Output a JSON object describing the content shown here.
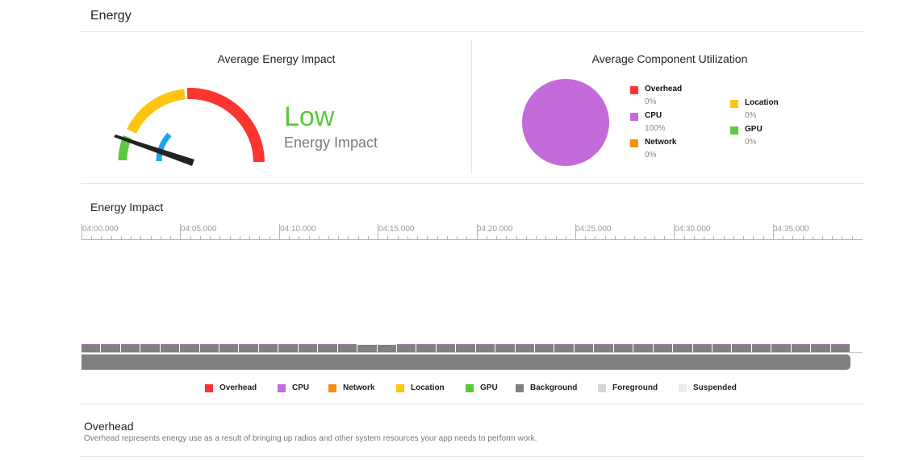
{
  "header": {
    "title": "Energy"
  },
  "gauge_panel": {
    "title": "Average Energy Impact",
    "level": "Low",
    "level_color": "#5ac93e",
    "subtitle": "Energy Impact",
    "segments": [
      {
        "name": "low",
        "color": "#5ac93e"
      },
      {
        "name": "medium",
        "color": "#fdc50d"
      },
      {
        "name": "high",
        "color": "#fd3530"
      },
      {
        "name": "current",
        "color": "#1ea3f4"
      }
    ]
  },
  "utilization_panel": {
    "title": "Average Component Utilization",
    "pie_color": "#c46bdb",
    "legend": [
      {
        "name": "Overhead",
        "value": "0%",
        "color": "#fd3530"
      },
      {
        "name": "CPU",
        "value": "100%",
        "color": "#c46bdb"
      },
      {
        "name": "Network",
        "value": "0%",
        "color": "#f68d0e"
      },
      {
        "name": "Location",
        "value": "0%",
        "color": "#fdc50d"
      },
      {
        "name": "GPU",
        "value": "0%",
        "color": "#5ac93e"
      }
    ]
  },
  "timeline": {
    "title": "Energy Impact",
    "tick_labels": [
      "04:00.000",
      "04:05.000",
      "04:10.000",
      "04:15.000",
      "04:20.000",
      "04:25.000",
      "04:30.000",
      "04:35.000"
    ],
    "legend": [
      {
        "name": "Overhead",
        "color": "#fd3530"
      },
      {
        "name": "CPU",
        "color": "#c46bdb"
      },
      {
        "name": "Network",
        "color": "#f68d0e"
      },
      {
        "name": "Location",
        "color": "#fdc50d"
      },
      {
        "name": "GPU",
        "color": "#5ac93e"
      },
      {
        "name": "Background",
        "color": "#808080"
      },
      {
        "name": "Foreground",
        "color": "#d6d6d6"
      },
      {
        "name": "Suspended",
        "color": "#ececec"
      }
    ]
  },
  "description": {
    "title": "Overhead",
    "text": "Overhead represents energy use as a result of bringing up radios and other system resources your app needs to perform work."
  }
}
